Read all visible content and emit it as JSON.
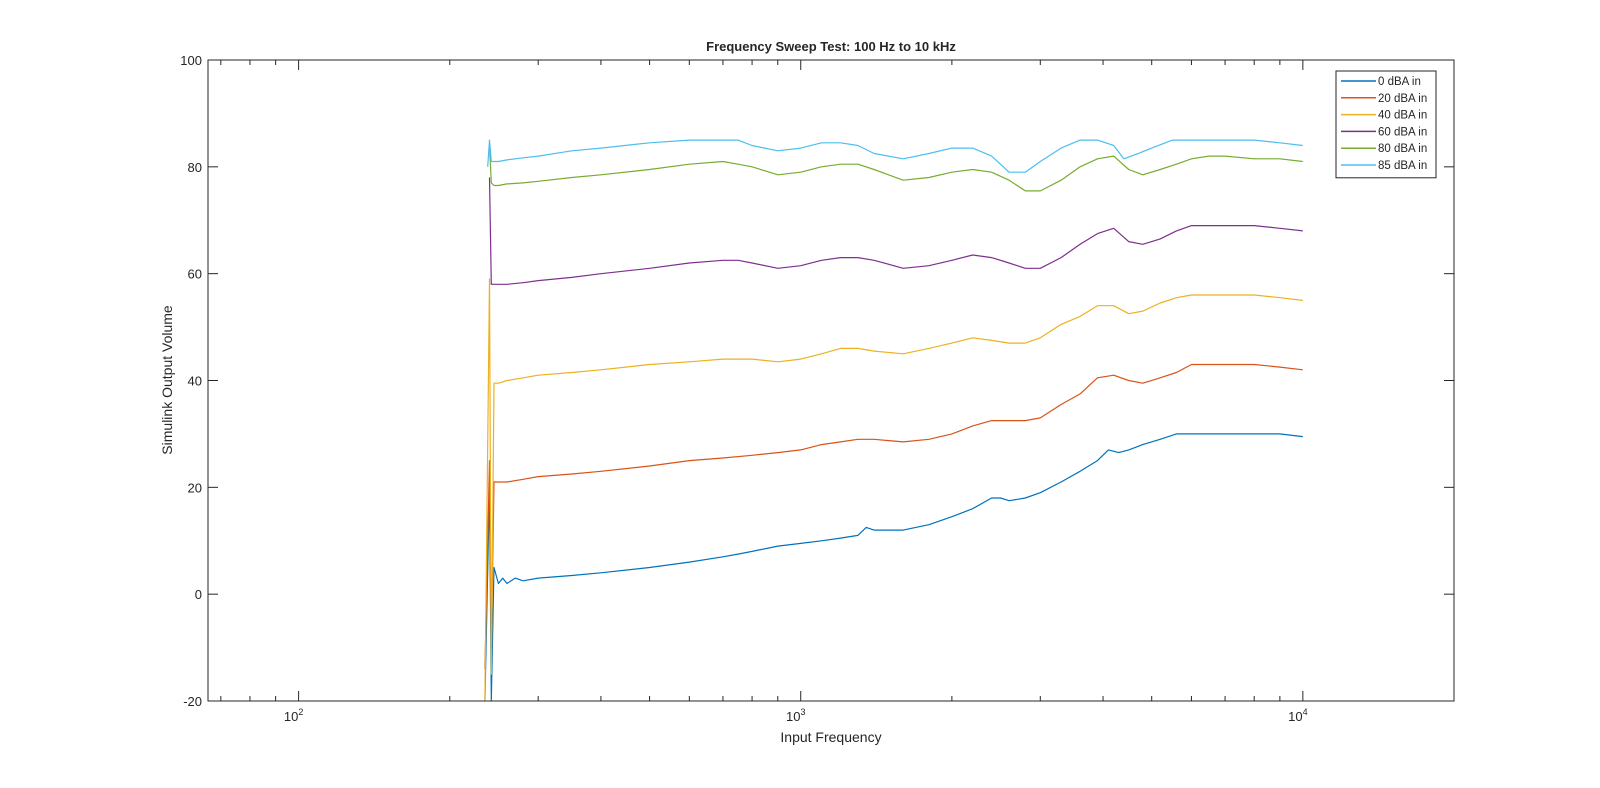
{
  "chart_data": {
    "type": "line",
    "title": "Frequency Sweep Test: 100 Hz to 10 kHz",
    "xlabel": "Input Frequency",
    "ylabel": "Simulink Output Volume",
    "x_scale": "log",
    "xlim": [
      66,
      20000
    ],
    "ylim": [
      -20,
      100
    ],
    "x_ticks": [
      {
        "base": "10",
        "exp": "2",
        "value": 100
      },
      {
        "base": "10",
        "exp": "3",
        "value": 1000
      },
      {
        "base": "10",
        "exp": "4",
        "value": 10000
      }
    ],
    "y_ticks": [
      "-20",
      "0",
      "20",
      "40",
      "60",
      "80",
      "100"
    ],
    "y_tick_values": [
      -20,
      0,
      20,
      40,
      60,
      80,
      100
    ],
    "grid": false,
    "legend_position": "top-right",
    "series": [
      {
        "name": "0 dBA in",
        "color": "#0072BD",
        "x": [
          235,
          240,
          242,
          245,
          250,
          255,
          260,
          270,
          280,
          300,
          350,
          400,
          500,
          600,
          700,
          750,
          800,
          900,
          1000,
          1100,
          1200,
          1300,
          1350,
          1400,
          1500,
          1600,
          1800,
          2000,
          2200,
          2400,
          2500,
          2600,
          2800,
          3000,
          3300,
          3600,
          3900,
          4100,
          4300,
          4500,
          4800,
          5200,
          5600,
          6000,
          6500,
          7000,
          8000,
          9000,
          10000
        ],
        "y": [
          -20,
          20,
          -20,
          5,
          2,
          3,
          2,
          3,
          2.5,
          3,
          3.5,
          4,
          5,
          6,
          7,
          7.5,
          8,
          9,
          9.5,
          10,
          10.5,
          11,
          12.5,
          12,
          12,
          12,
          13,
          14.5,
          16,
          18,
          18,
          17.5,
          18,
          19,
          21,
          23,
          25,
          27,
          26.5,
          27,
          28,
          29,
          30,
          30,
          30,
          30,
          30,
          30,
          29.5
        ]
      },
      {
        "name": "20 dBA in",
        "color": "#D95319",
        "x": [
          235,
          240,
          242,
          245,
          250,
          260,
          280,
          300,
          350,
          400,
          500,
          600,
          700,
          800,
          900,
          1000,
          1100,
          1200,
          1300,
          1400,
          1600,
          1800,
          2000,
          2200,
          2400,
          2600,
          2800,
          3000,
          3300,
          3600,
          3900,
          4200,
          4500,
          4800,
          5200,
          5600,
          6000,
          6500,
          7000,
          8000,
          9000,
          10000
        ],
        "y": [
          -14,
          25,
          -10,
          21,
          21,
          21,
          21.5,
          22,
          22.5,
          23,
          24,
          25,
          25.5,
          26,
          26.5,
          27,
          28,
          28.5,
          29,
          29,
          28.5,
          29,
          30,
          31.5,
          32.5,
          32.5,
          32.5,
          33,
          35.5,
          37.5,
          40.5,
          41,
          40,
          39.5,
          40.5,
          41.5,
          43,
          43,
          43,
          43,
          42.5,
          42
        ]
      },
      {
        "name": "40 dBA in",
        "color": "#EDB120",
        "x": [
          235,
          240,
          242,
          245,
          250,
          260,
          280,
          300,
          350,
          400,
          500,
          600,
          700,
          750,
          800,
          900,
          1000,
          1100,
          1200,
          1300,
          1400,
          1600,
          1800,
          2000,
          2200,
          2400,
          2600,
          2800,
          3000,
          3300,
          3600,
          3900,
          4200,
          4500,
          4800,
          5200,
          5600,
          6000,
          6500,
          7000,
          8000,
          9000,
          10000
        ],
        "y": [
          -20,
          59,
          -15,
          39.5,
          39.5,
          40,
          40.5,
          41,
          41.5,
          42,
          43,
          43.5,
          44,
          44,
          44,
          43.5,
          44,
          45,
          46,
          46,
          45.5,
          45,
          46,
          47,
          48,
          47.5,
          47,
          47,
          48,
          50.5,
          52,
          54,
          54,
          52.5,
          53,
          54.5,
          55.5,
          56,
          56,
          56,
          56,
          55.5,
          55
        ]
      },
      {
        "name": "60 dBA in",
        "color": "#7E2F8E",
        "x": [
          240,
          242,
          245,
          250,
          260,
          280,
          300,
          350,
          400,
          500,
          600,
          700,
          750,
          800,
          900,
          1000,
          1100,
          1200,
          1300,
          1400,
          1600,
          1800,
          2000,
          2200,
          2400,
          2600,
          2800,
          3000,
          3300,
          3600,
          3900,
          4200,
          4500,
          4800,
          5200,
          5600,
          6000,
          6500,
          7000,
          8000,
          9000,
          10000
        ],
        "y": [
          78,
          58,
          58,
          58,
          58,
          58.3,
          58.7,
          59.3,
          60,
          61,
          62,
          62.5,
          62.5,
          62,
          61,
          61.5,
          62.5,
          63,
          63,
          62.5,
          61,
          61.5,
          62.5,
          63.5,
          63,
          62,
          61,
          61,
          63,
          65.5,
          67.5,
          68.5,
          66,
          65.5,
          66.5,
          68,
          69,
          69,
          69,
          69,
          68.5,
          68
        ]
      },
      {
        "name": "80 dBA in",
        "color": "#77AC30",
        "x": [
          240,
          242,
          245,
          250,
          260,
          280,
          300,
          350,
          400,
          500,
          600,
          700,
          750,
          800,
          900,
          1000,
          1100,
          1200,
          1300,
          1400,
          1600,
          1800,
          2000,
          2200,
          2400,
          2600,
          2800,
          3000,
          3300,
          3600,
          3900,
          4200,
          4500,
          4800,
          5200,
          5600,
          6000,
          6500,
          7000,
          8000,
          9000,
          10000
        ],
        "y": [
          84,
          77,
          76.5,
          76.5,
          76.8,
          77,
          77.3,
          78,
          78.5,
          79.5,
          80.5,
          81,
          80.5,
          80,
          78.5,
          79,
          80,
          80.5,
          80.5,
          79.5,
          77.5,
          78,
          79,
          79.5,
          79,
          77.5,
          75.5,
          75.5,
          77.5,
          80,
          81.5,
          82,
          79.5,
          78.5,
          79.5,
          80.5,
          81.5,
          82,
          82,
          81.5,
          81.5,
          81
        ]
      },
      {
        "name": "85 dBA in",
        "color": "#4DBEEE",
        "x": [
          238,
          240,
          242,
          245,
          250,
          260,
          280,
          300,
          350,
          400,
          500,
          600,
          700,
          750,
          800,
          900,
          1000,
          1100,
          1200,
          1300,
          1400,
          1600,
          1800,
          2000,
          2200,
          2400,
          2600,
          2800,
          3000,
          3300,
          3600,
          3900,
          4200,
          4400,
          4700,
          5000,
          5500,
          6000,
          6500,
          7000,
          8000,
          9000,
          10000
        ],
        "y": [
          80,
          85,
          81,
          81,
          81,
          81.3,
          81.7,
          82,
          83,
          83.5,
          84.5,
          85,
          85,
          85,
          84,
          83,
          83.5,
          84.5,
          84.5,
          84,
          82.5,
          81.5,
          82.5,
          83.5,
          83.5,
          82,
          79,
          79,
          81,
          83.5,
          85,
          85,
          84,
          81.5,
          82.5,
          83.5,
          85,
          85,
          85,
          85,
          85,
          84.5,
          84
        ]
      }
    ]
  }
}
